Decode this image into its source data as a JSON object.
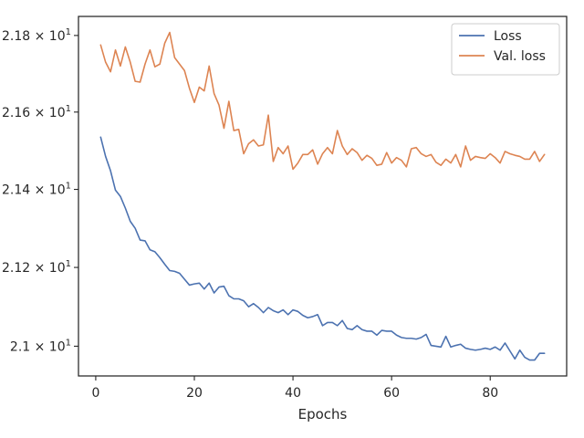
{
  "chart_data": {
    "type": "line",
    "xlabel": "Epochs",
    "ylabel": "",
    "title": "",
    "xlim": [
      -3.5,
      95.5
    ],
    "ylim": [
      20.925,
      21.85
    ],
    "y_scale": "log",
    "x_ticks": [
      0,
      20,
      40,
      60,
      80
    ],
    "y_ticks": [
      {
        "value": 21.0,
        "label_mantissa": "2.1",
        "label_base": "10",
        "label_exp": "1"
      },
      {
        "value": 21.2,
        "label_mantissa": "2.12",
        "label_base": "10",
        "label_exp": "1"
      },
      {
        "value": 21.4,
        "label_mantissa": "2.14",
        "label_base": "10",
        "label_exp": "1"
      },
      {
        "value": 21.6,
        "label_mantissa": "2.16",
        "label_base": "10",
        "label_exp": "1"
      },
      {
        "value": 21.8,
        "label_mantissa": "2.18",
        "label_base": "10",
        "label_exp": "1"
      }
    ],
    "grid": false,
    "legend_position": "top-right",
    "series": [
      {
        "name": "Loss",
        "color": "#4c72b0",
        "x": [
          1,
          2,
          3,
          4,
          5,
          6,
          7,
          8,
          9,
          10,
          11,
          12,
          13,
          14,
          15,
          16,
          17,
          18,
          19,
          20,
          21,
          22,
          23,
          24,
          25,
          26,
          27,
          28,
          29,
          30,
          31,
          32,
          33,
          34,
          35,
          36,
          37,
          38,
          39,
          40,
          41,
          42,
          43,
          44,
          45,
          46,
          47,
          48,
          49,
          50,
          51,
          52,
          53,
          54,
          55,
          56,
          57,
          58,
          59,
          60,
          61,
          62,
          63,
          64,
          65,
          66,
          67,
          68,
          69,
          70,
          71,
          72,
          73,
          74,
          75,
          76,
          77,
          78,
          79,
          80,
          81,
          82,
          83,
          84,
          85,
          86,
          87,
          88,
          89,
          90,
          91
        ],
        "values": [
          21.535,
          21.485,
          21.448,
          21.398,
          21.382,
          21.352,
          21.318,
          21.3,
          21.27,
          21.268,
          21.245,
          21.24,
          21.225,
          21.208,
          21.192,
          21.19,
          21.185,
          21.17,
          21.155,
          21.158,
          21.16,
          21.145,
          21.16,
          21.135,
          21.15,
          21.152,
          21.128,
          21.12,
          21.12,
          21.115,
          21.1,
          21.108,
          21.098,
          21.085,
          21.098,
          21.09,
          21.085,
          21.092,
          21.08,
          21.092,
          21.088,
          21.078,
          21.072,
          21.075,
          21.08,
          21.052,
          21.06,
          21.06,
          21.052,
          21.065,
          21.045,
          21.042,
          21.052,
          21.042,
          21.038,
          21.038,
          21.028,
          21.04,
          21.038,
          21.038,
          21.028,
          21.022,
          21.02,
          21.02,
          21.018,
          21.022,
          21.03,
          21.002,
          21.0,
          20.998,
          21.025,
          20.998,
          21.002,
          21.005,
          20.995,
          20.992,
          20.99,
          20.992,
          20.995,
          20.992,
          20.998,
          20.99,
          21.008,
          20.988,
          20.968,
          20.99,
          20.972,
          20.965,
          20.965,
          20.982,
          20.982
        ]
      },
      {
        "name": "Val. loss",
        "color": "#dd8452",
        "x": [
          1,
          2,
          3,
          4,
          5,
          6,
          7,
          8,
          9,
          10,
          11,
          12,
          13,
          14,
          15,
          16,
          17,
          18,
          19,
          20,
          21,
          22,
          23,
          24,
          25,
          26,
          27,
          28,
          29,
          30,
          31,
          32,
          33,
          34,
          35,
          36,
          37,
          38,
          39,
          40,
          41,
          42,
          43,
          44,
          45,
          46,
          47,
          48,
          49,
          50,
          51,
          52,
          53,
          54,
          55,
          56,
          57,
          58,
          59,
          60,
          61,
          62,
          63,
          64,
          65,
          66,
          67,
          68,
          69,
          70,
          71,
          72,
          73,
          74,
          75,
          76,
          77,
          78,
          79,
          80,
          81,
          82,
          83,
          84,
          85,
          86,
          87,
          88,
          89,
          90,
          91
        ],
        "values": [
          21.775,
          21.73,
          21.705,
          21.762,
          21.72,
          21.77,
          21.73,
          21.68,
          21.678,
          21.725,
          21.762,
          21.718,
          21.725,
          21.78,
          21.808,
          21.742,
          21.725,
          21.708,
          21.662,
          21.625,
          21.665,
          21.655,
          21.72,
          21.648,
          21.618,
          21.558,
          21.628,
          21.552,
          21.555,
          21.492,
          21.518,
          21.528,
          21.512,
          21.515,
          21.592,
          21.472,
          21.508,
          21.492,
          21.512,
          21.452,
          21.468,
          21.49,
          21.49,
          21.502,
          21.465,
          21.492,
          21.508,
          21.492,
          21.552,
          21.512,
          21.49,
          21.505,
          21.495,
          21.475,
          21.488,
          21.48,
          21.462,
          21.465,
          21.495,
          21.468,
          21.482,
          21.475,
          21.458,
          21.505,
          21.508,
          21.492,
          21.485,
          21.49,
          21.47,
          21.462,
          21.478,
          21.468,
          21.49,
          21.458,
          21.512,
          21.475,
          21.485,
          21.482,
          21.48,
          21.492,
          21.482,
          21.468,
          21.498,
          21.492,
          21.488,
          21.485,
          21.478,
          21.478,
          21.498,
          21.472,
          21.49
        ]
      }
    ]
  }
}
